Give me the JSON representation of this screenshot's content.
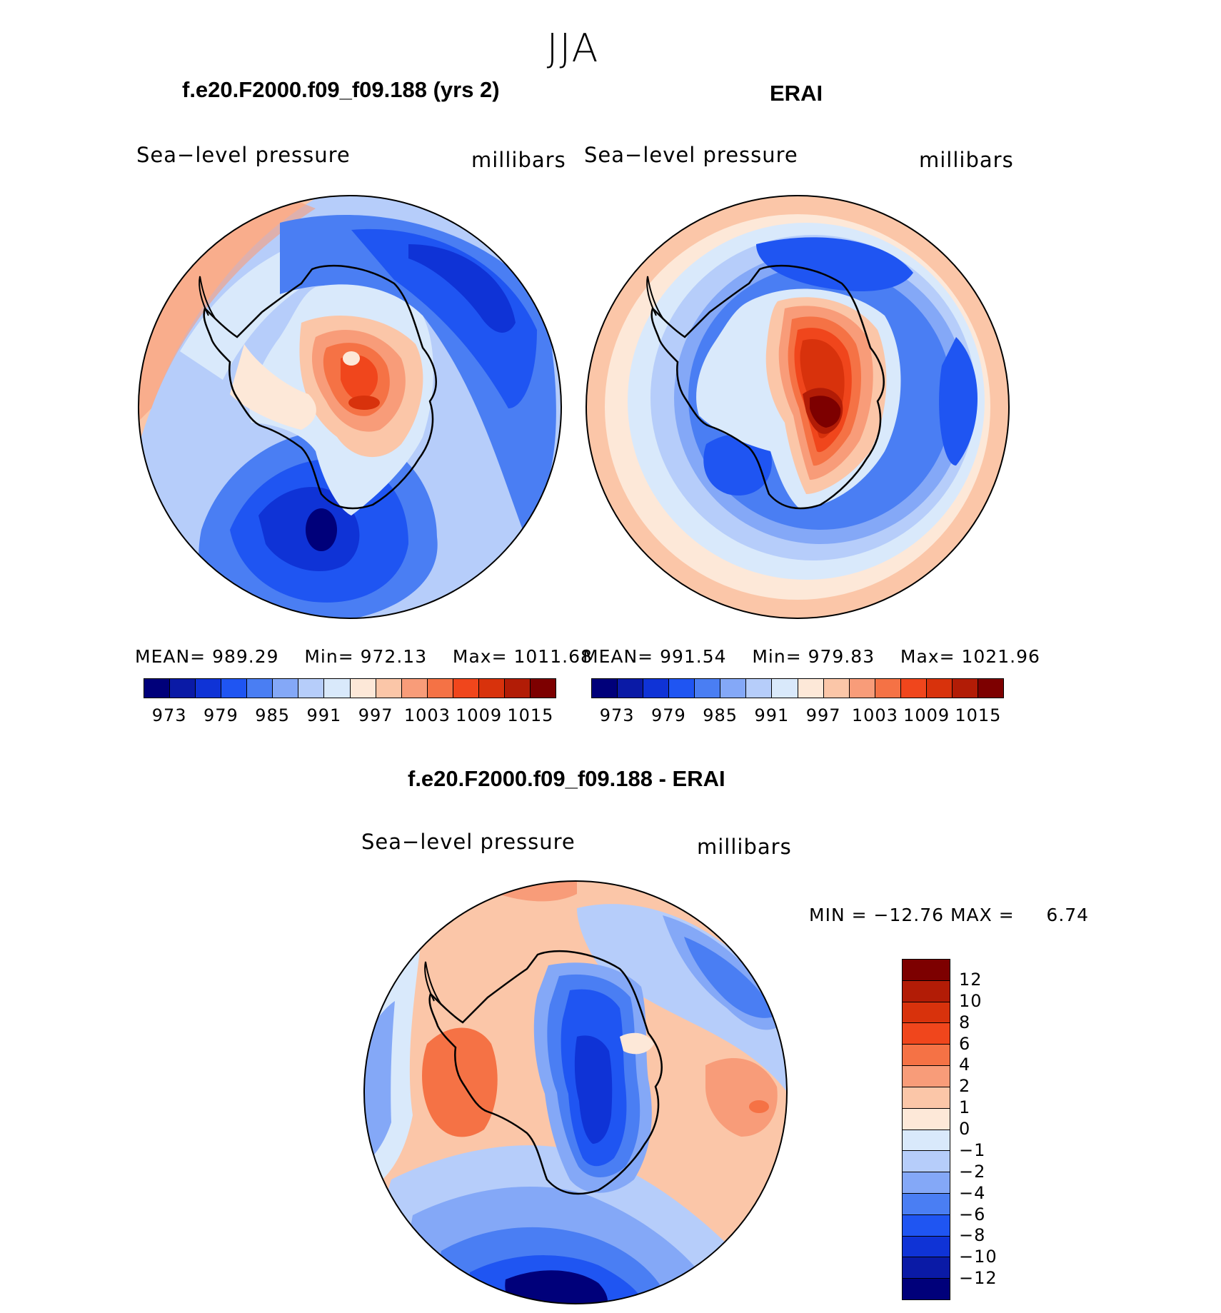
{
  "season": "JJA",
  "panels": {
    "model": {
      "title": "f.e20.F2000.f09_f09.188 (yrs 2)",
      "left_label": "Sea−level pressure",
      "right_label": "millibars",
      "stats": {
        "mean_label": "MEAN=",
        "mean": "989.29",
        "min_label": "Min=",
        "min": "972.13",
        "max_label": "Max=",
        "max": "1011.68"
      }
    },
    "obs": {
      "title": "ERAI",
      "left_label": "Sea−level pressure",
      "right_label": "millibars",
      "stats": {
        "mean_label": "MEAN=",
        "mean": "991.54",
        "min_label": "Min=",
        "min": "979.83",
        "max_label": "Max=",
        "max": "1021.96"
      }
    },
    "diff": {
      "title": "f.e20.F2000.f09_f09.188 - ERAI",
      "left_label": "Sea−level pressure",
      "right_label": "millibars",
      "minmax": {
        "min_label": "MIN =",
        "min": "−12.76",
        "max_label": "MAX =",
        "max": "6.74"
      }
    }
  },
  "chart_data": [
    {
      "type": "heatmap",
      "projection": "south-polar-stereographic",
      "title": "f.e20.F2000.f09_f09.188 (yrs 2)",
      "variable": "Sea-level pressure",
      "units": "millibars",
      "mean": 989.29,
      "min": 972.13,
      "max": 1011.68,
      "contour_levels": [
        973,
        976,
        979,
        982,
        985,
        988,
        991,
        994,
        997,
        1000,
        1003,
        1006,
        1009,
        1012,
        1015
      ],
      "colorbar_labels": [
        "973",
        "979",
        "985",
        "991",
        "997",
        "1003",
        "1009",
        "1015"
      ],
      "colors": [
        "#00007a",
        "#0a1aa6",
        "#0f33d6",
        "#1f55f2",
        "#4a7ef3",
        "#84a8f7",
        "#b6cdfa",
        "#d9e9fb",
        "#fde8d8",
        "#fbc6a8",
        "#f89c79",
        "#f57245",
        "#f0461c",
        "#d8320c",
        "#b21c06",
        "#7d0000"
      ]
    },
    {
      "type": "heatmap",
      "projection": "south-polar-stereographic",
      "title": "ERAI",
      "variable": "Sea-level pressure",
      "units": "millibars",
      "mean": 991.54,
      "min": 979.83,
      "max": 1021.96,
      "contour_levels": [
        973,
        976,
        979,
        982,
        985,
        988,
        991,
        994,
        997,
        1000,
        1003,
        1006,
        1009,
        1012,
        1015
      ],
      "colorbar_labels": [
        "973",
        "979",
        "985",
        "991",
        "997",
        "1003",
        "1009",
        "1015"
      ],
      "colors": [
        "#00007a",
        "#0a1aa6",
        "#0f33d6",
        "#1f55f2",
        "#4a7ef3",
        "#84a8f7",
        "#b6cdfa",
        "#d9e9fb",
        "#fde8d8",
        "#fbc6a8",
        "#f89c79",
        "#f57245",
        "#f0461c",
        "#d8320c",
        "#b21c06",
        "#7d0000"
      ]
    },
    {
      "type": "heatmap",
      "projection": "south-polar-stereographic",
      "title": "f.e20.F2000.f09_f09.188 - ERAI",
      "variable": "Sea-level pressure",
      "units": "millibars",
      "min": -12.76,
      "max": 6.74,
      "contour_levels": [
        -12,
        -10,
        -8,
        -6,
        -4,
        -2,
        -1,
        0,
        1,
        2,
        4,
        6,
        8,
        10,
        12
      ],
      "colorbar_labels": [
        "12",
        "10",
        "8",
        "6",
        "4",
        "2",
        "1",
        "0",
        "−1",
        "−2",
        "−4",
        "−6",
        "−8",
        "−10",
        "−12"
      ],
      "colors_top_to_bottom": [
        "#7d0000",
        "#b21c06",
        "#d8320c",
        "#f0461c",
        "#f57245",
        "#f89c79",
        "#fbc6a8",
        "#fde8d8",
        "#d9e9fb",
        "#b6cdfa",
        "#84a8f7",
        "#4a7ef3",
        "#1f55f2",
        "#0f33d6",
        "#0a1aa6",
        "#00007a"
      ]
    }
  ]
}
